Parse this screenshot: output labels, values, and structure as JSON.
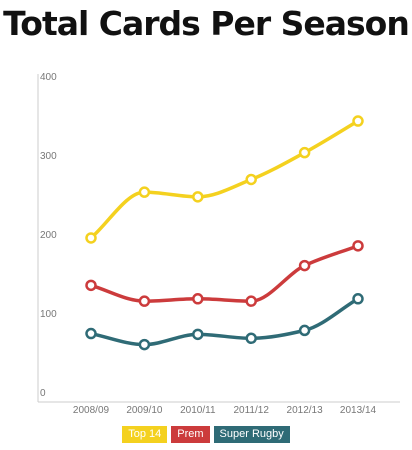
{
  "chart_data": {
    "type": "line",
    "title": "Total Cards Per Season",
    "xlabel": "",
    "ylabel": "",
    "categories": [
      "2008/09",
      "2009/10",
      "2010/11",
      "2011/12",
      "2012/13",
      "2013/14"
    ],
    "ylim": [
      0,
      400
    ],
    "yticks": [
      "0",
      "100",
      "200",
      "300",
      "400"
    ],
    "grid": false,
    "legend_position": "bottom",
    "series": [
      {
        "name": "Top 14",
        "color": "#f4d11f",
        "values": [
          195,
          253,
          247,
          269,
          303,
          343
        ]
      },
      {
        "name": "Prem",
        "color": "#cc3b3c",
        "values": [
          135,
          115,
          118,
          115,
          160,
          185
        ]
      },
      {
        "name": "Super Rugby",
        "color": "#2f6b76",
        "values": [
          74,
          60,
          73,
          68,
          78,
          118
        ]
      }
    ]
  }
}
